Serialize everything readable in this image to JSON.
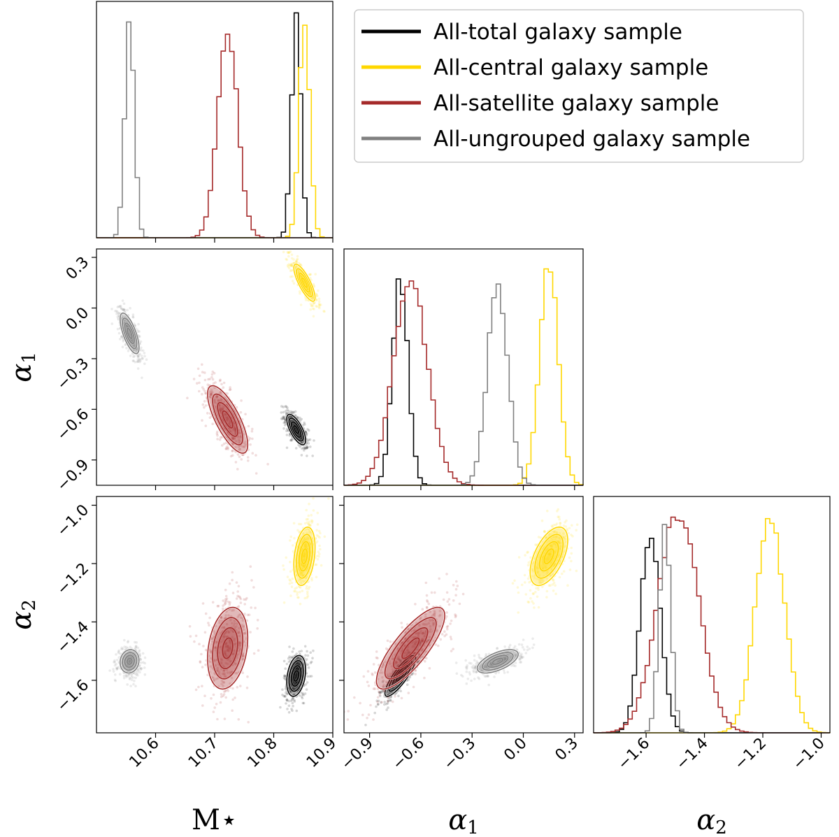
{
  "chart_data": {
    "type": "corner",
    "parameters": [
      "M*",
      "α1",
      "α2"
    ],
    "axis_labels": {
      "m_star": "M⋆",
      "alpha1_base": "α",
      "alpha1_sub": "1",
      "alpha2_base": "α",
      "alpha2_sub": "2"
    },
    "ranges": {
      "M": [
        10.5,
        10.9
      ],
      "a1": [
        -1.05,
        0.35
      ],
      "a2": [
        -1.78,
        -0.97
      ]
    },
    "ticks": {
      "M": {
        "values": [
          10.6,
          10.7,
          10.8,
          10.9
        ],
        "labels": [
          "10.6",
          "10.7",
          "10.8",
          "10.9"
        ]
      },
      "a1": {
        "values": [
          -0.9,
          -0.6,
          -0.3,
          0.0,
          0.3
        ],
        "labels": [
          "−0.9",
          "−0.6",
          "−0.3",
          "0.0",
          "0.3"
        ]
      },
      "a2_left": {
        "values": [
          -1.6,
          -1.4,
          -1.2,
          -1.0
        ],
        "labels": [
          "−1.6",
          "−1.4",
          "−1.2",
          "−1.0"
        ]
      },
      "a2_bottom": {
        "values": [
          -1.6,
          -1.4,
          -1.2,
          -1.0
        ],
        "labels": [
          "−1.6",
          "−1.4",
          "−1.2",
          "−1.0"
        ]
      }
    },
    "legend": {
      "position": "upper-right",
      "entries": [
        {
          "label": "All-total galaxy sample",
          "color": "#000000"
        },
        {
          "label": "All-central galaxy sample",
          "color": "#ffd700"
        },
        {
          "label": "All-satellite galaxy sample",
          "color": "#a52a2a"
        },
        {
          "label": "All-ungrouped galaxy sample",
          "color": "#808080"
        }
      ]
    },
    "series": [
      {
        "key": "total",
        "color": "#000000",
        "mean": {
          "M": 10.838,
          "a1": -0.72,
          "a2": -1.585
        },
        "sd": {
          "M": 0.008,
          "a1": 0.045,
          "a2": 0.035
        },
        "corr": {
          "M_a1": -0.7,
          "M_a2": 0.3,
          "a1_a2": 0.85
        },
        "peak": {
          "M": 0.92,
          "a1": 0.88,
          "a2": 0.82
        }
      },
      {
        "key": "central",
        "color": "#ffd700",
        "mean": {
          "M": 10.852,
          "a1": 0.15,
          "a2": -1.175
        },
        "sd": {
          "M": 0.009,
          "a1": 0.055,
          "a2": 0.05
        },
        "corr": {
          "M_a1": -0.8,
          "M_a2": 0.3,
          "a1_a2": 0.55
        },
        "peak": {
          "M": 0.91,
          "a1": 0.93,
          "a2": 0.9
        }
      },
      {
        "key": "satellite",
        "color": "#a52a2a",
        "mean": {
          "M": 10.722,
          "a1": -0.66,
          "a2": -1.49
        },
        "sd": {
          "M": 0.017,
          "a1": 0.1,
          "a2": 0.07
        },
        "corr": {
          "M_a1": -0.75,
          "M_a2": 0.25,
          "a1_a2": 0.8
        },
        "peak": {
          "M": 0.87,
          "a1": 0.86,
          "a2": 0.93
        }
      },
      {
        "key": "ungrouped",
        "color": "#808080",
        "mean": {
          "M": 10.556,
          "a1": -0.15,
          "a2": -1.535
        },
        "sd": {
          "M": 0.008,
          "a1": 0.06,
          "a2": 0.02
        },
        "corr": {
          "M_a1": -0.7,
          "M_a2": 0.1,
          "a1_a2": 0.6
        },
        "peak": {
          "M": 0.95,
          "a1": 0.85,
          "a2": 0.86
        }
      }
    ]
  }
}
